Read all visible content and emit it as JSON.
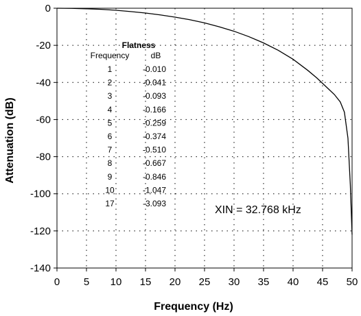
{
  "chart_data": {
    "type": "line",
    "xlabel": "Frequency (Hz)",
    "ylabel": "Attenuation (dB)",
    "xlim": [
      0,
      50
    ],
    "ylim": [
      -140,
      0
    ],
    "x_ticks": [
      "0",
      "5",
      "10",
      "15",
      "20",
      "25",
      "30",
      "35",
      "40",
      "45",
      "50"
    ],
    "y_ticks": [
      "0",
      "-20",
      "-40",
      "-60",
      "-80",
      "-100",
      "-120",
      "-140"
    ],
    "grid": "dotted",
    "series": [
      {
        "x": [
          0,
          2.5,
          5,
          7.5,
          10,
          12.5,
          15,
          17.5,
          20,
          22.5,
          25,
          27.5,
          30,
          32.5,
          35,
          37.5,
          40,
          42.5,
          44,
          45,
          46,
          47,
          48,
          48.7,
          49.3,
          49.7,
          50
        ],
        "y": [
          0,
          -0.1,
          -0.3,
          -0.6,
          -1.1,
          -1.8,
          -2.6,
          -3.6,
          -4.8,
          -6.2,
          -7.9,
          -10.0,
          -12.4,
          -15.3,
          -18.7,
          -22.7,
          -27.5,
          -33.5,
          -37.5,
          -40.5,
          -43.5,
          -46.5,
          -50.5,
          -56,
          -70,
          -95,
          -122
        ]
      }
    ],
    "table": {
      "title": "Flatness",
      "columns": [
        "Frequency",
        "dB"
      ],
      "rows": [
        [
          "1",
          "-0.010"
        ],
        [
          "2",
          "-0.041"
        ],
        [
          "3",
          "-0.093"
        ],
        [
          "4",
          "-0.166"
        ],
        [
          "5",
          "-0.259"
        ],
        [
          "6",
          "-0.374"
        ],
        [
          "7",
          "-0.510"
        ],
        [
          "8",
          "-0.667"
        ],
        [
          "9",
          "-0.846"
        ],
        [
          "10",
          "-1.047"
        ],
        [
          "17",
          "-3.093"
        ]
      ]
    },
    "annotation": "XIN = 32.768 kHz"
  }
}
